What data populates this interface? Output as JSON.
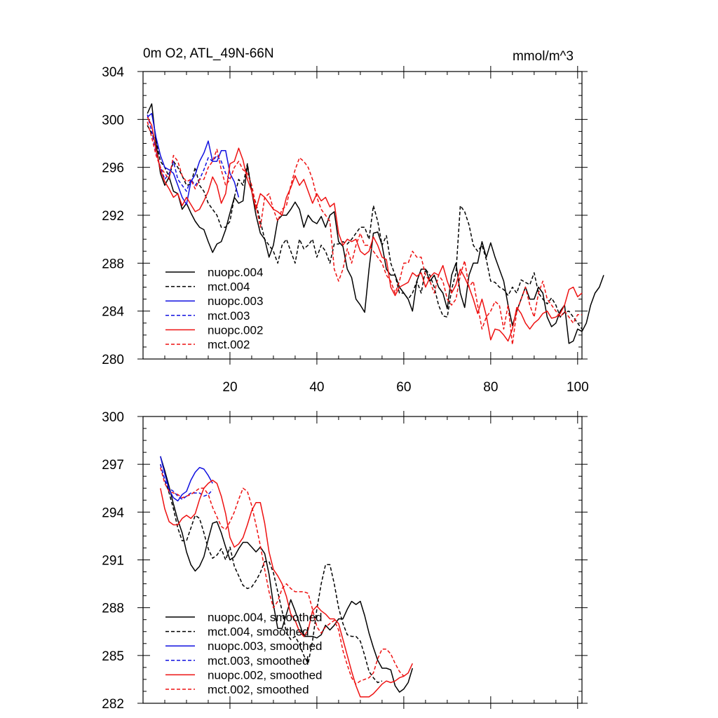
{
  "figure": {
    "title_left": "0m O2, ATL_49N-66N",
    "title_right": "mmol/m^3"
  },
  "colors": {
    "black": "#000000",
    "blue": "#1010e0",
    "red": "#ee1111"
  },
  "chart_data": [
    {
      "type": "line",
      "title": "0m O2, ATL_49N-66N",
      "units": "mmol/m^3",
      "xlim": [
        0,
        101
      ],
      "ylim": [
        280,
        304
      ],
      "xticks": [
        20,
        40,
        60,
        80,
        100
      ],
      "yticks": [
        280,
        284,
        288,
        292,
        296,
        300,
        304
      ],
      "ytick_labels": [
        "280",
        "284",
        "288",
        "292",
        "296",
        "300",
        "304"
      ],
      "legend_position": "bottom-left",
      "series": [
        {
          "name": "nuopc.004",
          "color": "#000000",
          "dash": "solid",
          "x_start": 1,
          "values": [
            300.5,
            301.3,
            298.0,
            295.5,
            294.5,
            295.2,
            294.0,
            293.8,
            292.5,
            293.0,
            292.2,
            291.5,
            291.0,
            290.8,
            289.8,
            288.9,
            289.6,
            289.8,
            290.8,
            292.2,
            293.5,
            293.0,
            293.2,
            296.2,
            294.0,
            292.0,
            290.5,
            290.0,
            288.5,
            289.5,
            291.6,
            292.0,
            292.0,
            292.5,
            293.1,
            292.5,
            291.0,
            292.0,
            291.5,
            291.3,
            291.9,
            291.0,
            292.0,
            292.3,
            289.8,
            289.4,
            287.5,
            286.8,
            285.0,
            284.5,
            283.9,
            287.5,
            290.5,
            290.6,
            289.5,
            287.5,
            287.0,
            287.0,
            286.0,
            285.5,
            285.0,
            284.0,
            286.5,
            287.5,
            287.5,
            286.5,
            287.0,
            286.0,
            285.5,
            284.2,
            287.0,
            288.0,
            285.5,
            284.3,
            287.0,
            288.0,
            288.0,
            289.8,
            288.5,
            289.7,
            288.5,
            287.5,
            286.5,
            284.5,
            282.8,
            284.0,
            285.0,
            286.0,
            285.0,
            285.0,
            286.0,
            285.5,
            283.5,
            282.7,
            283.0,
            284.0,
            284.5,
            281.3,
            281.5,
            282.5,
            282.3,
            283.0,
            284.5,
            285.5,
            286.0,
            287.0
          ]
        },
        {
          "name": "mct.004",
          "color": "#000000",
          "dash": "dashed",
          "x_start": 1,
          "values": [
            299.5,
            298.8,
            298.2,
            296.5,
            296.0,
            295.2,
            296.5,
            296.0,
            295.3,
            294.5,
            294.6,
            296.0,
            294.5,
            294.0,
            293.0,
            292.5,
            292.0,
            291.0,
            291.0,
            291.5,
            293.5,
            295.0,
            294.5,
            296.3,
            294.0,
            293.0,
            291.5,
            290.0,
            289.5,
            289.0,
            288.0,
            289.5,
            290.0,
            289.0,
            288.0,
            290.0,
            289.2,
            289.5,
            290.0,
            288.5,
            289.5,
            289.0,
            288.0,
            289.6,
            289.6,
            289.8,
            289.6,
            290.0,
            290.5,
            291.0,
            291.0,
            290.0,
            292.8,
            291.5,
            289.5,
            290.3,
            288.0,
            287.0,
            285.5,
            285.5,
            285.0,
            285.5,
            286.5,
            285.5,
            287.5,
            287.0,
            286.0,
            284.5,
            283.6,
            283.5,
            285.8,
            287.2,
            292.8,
            292.3,
            291.2,
            289.5,
            289.0,
            289.5,
            288.3,
            286.5,
            286.4,
            286.0,
            285.8,
            285.3,
            286.0,
            285.5,
            286.6,
            286.4,
            286.2,
            287.2,
            285.5,
            285.0,
            284.6,
            285.1,
            284.5,
            283.5,
            283.9,
            284.0,
            283.5,
            283.0,
            282.5
          ]
        },
        {
          "name": "nuopc.003",
          "color": "#1010e0",
          "dash": "solid",
          "x_start": 1,
          "values": [
            300.2,
            300.5,
            298.5,
            297.0,
            296.0,
            295.8,
            295.5,
            294.5,
            293.5,
            292.9,
            294.8,
            295.4,
            296.5,
            297.2,
            298.2,
            296.5,
            296.5,
            297.4,
            297.4,
            295.5,
            294.8,
            293.5
          ]
        },
        {
          "name": "mct.003",
          "color": "#1010e0",
          "dash": "dashed",
          "x_start": 1,
          "values": [
            300.4,
            299.0,
            297.3,
            296.0,
            295.0,
            295.5,
            296.5,
            295.0,
            294.5,
            294.0,
            295.0,
            294.5,
            295.0,
            295.8,
            296.8,
            296.5,
            297.0,
            296.5,
            295.5,
            295.0
          ]
        },
        {
          "name": "nuopc.002",
          "color": "#ee1111",
          "dash": "solid",
          "x_start": 1,
          "values": [
            300.2,
            299.5,
            297.5,
            295.8,
            294.8,
            294.2,
            293.5,
            293.8,
            292.8,
            293.5,
            292.9,
            292.3,
            292.5,
            293.2,
            294.0,
            295.2,
            294.5,
            293.0,
            293.8,
            296.3,
            296.5,
            297.6,
            296.6,
            295.0,
            294.0,
            292.5,
            293.8,
            293.5,
            293.0,
            292.5,
            292.3,
            292.0,
            293.5,
            294.3,
            295.3,
            294.5,
            295.0,
            294.0,
            293.0,
            293.8,
            293.2,
            293.5,
            292.7,
            293.0,
            290.5,
            289.5,
            290.0,
            289.8,
            290.0,
            289.0,
            288.7,
            289.0,
            290.2,
            289.5,
            288.5,
            288.3,
            286.0,
            285.3,
            286.0,
            286.2,
            286.4,
            287.2,
            286.9,
            287.2,
            286.0,
            286.8,
            287.2,
            287.0,
            287.8,
            286.5,
            285.5,
            286.2,
            287.5,
            286.8,
            286.0,
            285.0,
            283.8,
            285.0,
            283.6,
            281.6,
            282.5,
            282.4,
            282.0,
            281.5,
            282.5,
            284.3,
            283.8,
            283.0,
            282.5,
            283.0,
            283.3,
            283.8,
            284.0,
            283.4,
            283.5,
            283.8,
            284.5,
            285.8,
            286.0,
            285.2,
            285.5
          ]
        },
        {
          "name": "mct.002",
          "color": "#ee1111",
          "dash": "dashed",
          "x_start": 1,
          "values": [
            299.8,
            298.5,
            297.0,
            296.0,
            295.5,
            295.0,
            297.0,
            296.5,
            295.3,
            294.8,
            295.0,
            294.2,
            295.0,
            295.0,
            296.0,
            296.5,
            297.5,
            295.8,
            294.5,
            295.0,
            296.0,
            296.5,
            295.8,
            295.5,
            294.5,
            292.8,
            291.0,
            293.5,
            293.8,
            292.5,
            291.5,
            292.5,
            292.8,
            294.5,
            295.8,
            296.8,
            296.5,
            296.0,
            295.0,
            293.5,
            292.5,
            292.0,
            291.5,
            287.5,
            286.5,
            287.5,
            289.2,
            288.0,
            289.5,
            290.5,
            289.5,
            289.5,
            289.0,
            288.5,
            288.0,
            287.0,
            286.5,
            285.5,
            286.5,
            288.0,
            288.0,
            289.0,
            288.5,
            288.5,
            287.0,
            286.5,
            285.5,
            287.0,
            286.5,
            285.0,
            284.5,
            285.0,
            287.0,
            288.2,
            286.0,
            286.5,
            284.5,
            282.5,
            283.5,
            284.0,
            284.8,
            284.5,
            282.5,
            284.5,
            281.2,
            284.0,
            285.0,
            286.0,
            284.5,
            283.5,
            285.5,
            286.5,
            285.0,
            284.5,
            284.0,
            283.5,
            284.0,
            283.5,
            283.0,
            283.7,
            283.7
          ]
        }
      ],
      "legend": [
        {
          "label": "nuopc.004",
          "series": 0
        },
        {
          "label": "mct.004",
          "series": 1
        },
        {
          "label": "nuopc.003",
          "series": 2
        },
        {
          "label": "mct.003",
          "series": 3
        },
        {
          "label": "nuopc.002",
          "series": 4
        },
        {
          "label": "mct.002",
          "series": 5
        }
      ]
    },
    {
      "type": "line",
      "title": "",
      "xlim": [
        0,
        101
      ],
      "ylim": [
        282,
        300
      ],
      "xticks": [
        20,
        40,
        60,
        80,
        100
      ],
      "show_xtick_labels": false,
      "yticks": [
        282,
        285,
        288,
        291,
        294,
        297,
        300
      ],
      "ytick_labels": [
        "282",
        "285",
        "288",
        "291",
        "294",
        "297",
        "300"
      ],
      "legend_position": "bottom-left",
      "series": [
        {
          "name": "nuopc.004, smoothed",
          "color": "#000000",
          "dash": "solid",
          "x_start": 4,
          "values": [
            297.5,
            296.6,
            295.6,
            294.5,
            293.5,
            292.7,
            291.5,
            290.7,
            290.3,
            290.6,
            291.2,
            292.3,
            293.3,
            293.4,
            292.7,
            291.8,
            291.0,
            291.2,
            291.7,
            292.1,
            292.1,
            291.8,
            291.5,
            291.8,
            291.4,
            290.1,
            288.2,
            286.7,
            286.7,
            287.6,
            288.5,
            287.8,
            287.0,
            286.2,
            286.2,
            286.2,
            286.1,
            286.3,
            286.9,
            286.6,
            286.9,
            287.3,
            287.3,
            287.9,
            288.4,
            288.2,
            288.4,
            287.5,
            286.4,
            285.5,
            284.7,
            284.2,
            284.2,
            284.1,
            283.1,
            282.7,
            282.9,
            283.3,
            284.2
          ]
        },
        {
          "name": "mct.004, smoothed",
          "color": "#000000",
          "dash": "dashed",
          "x_start": 4,
          "values": [
            297.0,
            296.0,
            295.2,
            294.2,
            293.0,
            292.2,
            292.2,
            293.0,
            293.8,
            293.6,
            292.7,
            291.7,
            291.1,
            291.3,
            291.7,
            291.0,
            291.8,
            290.6,
            290.0,
            289.4,
            289.2,
            289.3,
            289.7,
            290.2,
            290.9,
            290.9,
            290.2,
            289.0,
            287.8,
            286.4,
            286.0,
            286.2,
            285.7,
            285.0,
            284.5,
            285.9,
            287.9,
            289.5,
            290.7,
            290.7,
            289.5,
            288.0,
            287.0,
            286.3,
            286.2,
            286.2,
            285.9,
            285.0,
            284.0,
            283.6,
            283.3,
            283.4
          ]
        },
        {
          "name": "nuopc.003, smoothed",
          "color": "#1010e0",
          "dash": "solid",
          "x_start": 4,
          "values": [
            297.5,
            296.4,
            295.4,
            294.9,
            294.7,
            295.1,
            295.3,
            296.0,
            296.5,
            296.8,
            296.7,
            296.3,
            295.8
          ]
        },
        {
          "name": "mct.003, smoothed",
          "color": "#1010e0",
          "dash": "dashed",
          "x_start": 4,
          "values": [
            297.0,
            296.0,
            295.5,
            295.3,
            295.0,
            294.8,
            295.0,
            295.2,
            295.2,
            295.2,
            295.0,
            295.1,
            295.4
          ]
        },
        {
          "name": "nuopc.002, smoothed",
          "color": "#ee1111",
          "dash": "solid",
          "x_start": 4,
          "values": [
            295.5,
            294.2,
            293.4,
            293.2,
            293.2,
            293.6,
            293.8,
            293.6,
            293.9,
            294.8,
            295.5,
            295.8,
            296.0,
            295.8,
            295.0,
            293.9,
            292.4,
            291.8,
            292.0,
            292.4,
            293.2,
            294.1,
            294.6,
            294.6,
            293.3,
            291.5,
            290.4,
            290.0,
            289.5,
            288.7,
            287.6,
            287.2,
            286.5,
            286.2,
            286.6,
            287.8,
            288.1,
            287.8,
            287.6,
            287.3,
            287.3,
            287.0,
            286.0,
            285.0,
            284.0,
            283.1,
            282.4,
            282.4,
            282.4,
            282.6,
            282.9,
            283.2,
            283.4,
            283.3,
            283.4,
            283.6,
            283.7,
            283.9,
            284.5
          ]
        },
        {
          "name": "mct.002, smoothed",
          "color": "#ee1111",
          "dash": "dashed",
          "x_start": 4,
          "values": [
            296.8,
            295.8,
            295.3,
            295.2,
            295.1,
            294.9,
            295.0,
            295.1,
            295.3,
            295.5,
            295.5,
            295.1,
            294.3,
            293.7,
            293.1,
            292.9,
            293.4,
            294.0,
            294.8,
            295.5,
            295.3,
            294.4,
            293.2,
            291.9,
            290.4,
            289.0,
            288.0,
            288.4,
            289.2,
            289.5,
            289.2,
            289.0,
            289.0,
            289.0,
            288.9,
            287.9,
            286.8,
            286.4,
            286.8,
            287.0,
            287.2,
            286.6,
            285.3,
            284.4,
            283.6,
            283.2,
            283.4,
            283.5,
            283.6,
            283.9,
            284.8,
            285.4,
            285.4,
            285.1,
            284.5,
            284.0,
            283.7
          ]
        }
      ],
      "legend": [
        {
          "label": "nuopc.004, smoothed",
          "series": 0
        },
        {
          "label": "mct.004, smoothed",
          "series": 1
        },
        {
          "label": "nuopc.003, smoothed",
          "series": 2
        },
        {
          "label": "mct.003, smoothed",
          "series": 3
        },
        {
          "label": "nuopc.002, smoothed",
          "series": 4
        },
        {
          "label": "mct.002, smoothed",
          "series": 5
        }
      ]
    }
  ]
}
